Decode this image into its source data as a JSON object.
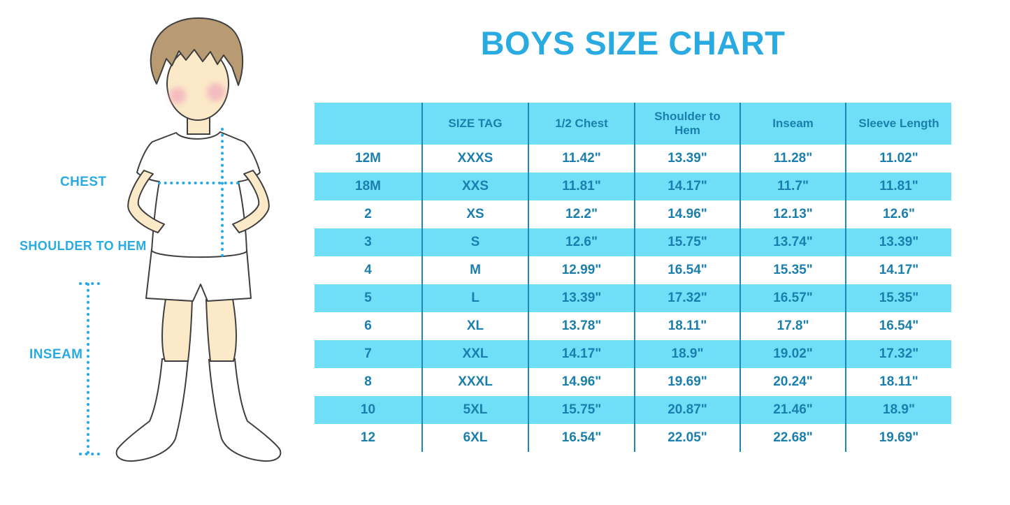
{
  "title": "BOYS SIZE CHART",
  "figure": {
    "labels": {
      "chest": "CHEST",
      "shoulder_to_hem": "SHOULDER TO HEM",
      "inseam": "INSEAM"
    }
  },
  "colors": {
    "accent_blue": "#29ABE2",
    "stripe_blue": "#6FDFF8",
    "table_text_blue": "#1B7FAD",
    "divider_blue": "#1D86B8"
  },
  "chart_data": {
    "type": "table",
    "title": "BOYS SIZE CHART",
    "columns": [
      "",
      "SIZE TAG",
      "1/2 Chest",
      "Shoulder to Hem",
      "Inseam",
      "Sleeve Length"
    ],
    "rows": [
      [
        "12M",
        "XXXS",
        "11.42\"",
        "13.39\"",
        "11.28\"",
        "11.02\""
      ],
      [
        "18M",
        "XXS",
        "11.81\"",
        "14.17\"",
        "11.7\"",
        "11.81\""
      ],
      [
        "2",
        "XS",
        "12.2\"",
        "14.96\"",
        "12.13\"",
        "12.6\""
      ],
      [
        "3",
        "S",
        "12.6\"",
        "15.75\"",
        "13.74\"",
        "13.39\""
      ],
      [
        "4",
        "M",
        "12.99\"",
        "16.54\"",
        "15.35\"",
        "14.17\""
      ],
      [
        "5",
        "L",
        "13.39\"",
        "17.32\"",
        "16.57\"",
        "15.35\""
      ],
      [
        "6",
        "XL",
        "13.78\"",
        "18.11\"",
        "17.8\"",
        "16.54\""
      ],
      [
        "7",
        "XXL",
        "14.17\"",
        "18.9\"",
        "19.02\"",
        "17.32\""
      ],
      [
        "8",
        "XXXL",
        "14.96\"",
        "19.69\"",
        "20.24\"",
        "18.11\""
      ],
      [
        "10",
        "5XL",
        "15.75\"",
        "20.87\"",
        "21.46\"",
        "18.9\""
      ],
      [
        "12",
        "6XL",
        "16.54\"",
        "22.05\"",
        "22.68\"",
        "19.69\""
      ]
    ],
    "layout": {
      "stripe": "alternating header+even rows light blue",
      "grid": "vertical column dividers only"
    }
  }
}
